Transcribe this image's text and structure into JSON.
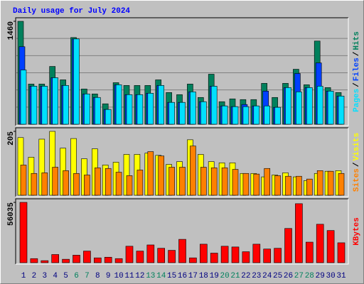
{
  "chart_data": [
    {
      "type": "bar",
      "title": "Daily usage for July 2024",
      "separator": "/",
      "ylim": [
        0,
        1460
      ],
      "yticks": [
        1460
      ],
      "series": [
        {
          "name": "Hits",
          "color": "#00805c",
          "values": [
            1460,
            570,
            570,
            820,
            630,
            1230,
            500,
            430,
            290,
            590,
            550,
            550,
            550,
            630,
            450,
            420,
            570,
            380,
            710,
            320,
            360,
            350,
            350,
            580,
            380,
            580,
            780,
            560,
            1180,
            520,
            450
          ]
        },
        {
          "name": "Files",
          "color": "#0040ff",
          "values": [
            1100,
            540,
            540,
            660,
            550,
            1210,
            430,
            380,
            210,
            560,
            420,
            420,
            440,
            550,
            310,
            310,
            460,
            320,
            540,
            260,
            250,
            280,
            260,
            470,
            240,
            520,
            720,
            520,
            870,
            470,
            400
          ]
        },
        {
          "name": "Pages",
          "color": "#00e0ff",
          "values": [
            770,
            540,
            540,
            660,
            550,
            1210,
            430,
            380,
            210,
            560,
            420,
            420,
            440,
            550,
            310,
            310,
            460,
            320,
            540,
            260,
            250,
            250,
            260,
            260,
            240,
            520,
            460,
            520,
            540,
            470,
            400
          ]
        }
      ]
    },
    {
      "type": "bar",
      "separator": "/",
      "ylim": [
        0,
        205
      ],
      "yticks": [
        205
      ],
      "series": [
        {
          "name": "Visits",
          "color": "#ffff00",
          "values": [
            185,
            122,
            180,
            205,
            151,
            182,
            117,
            149,
            97,
            106,
            131,
            131,
            135,
            128,
            99,
            108,
            178,
            131,
            108,
            104,
            104,
            70,
            70,
            59,
            65,
            72,
            59,
            47,
            70,
            77,
            79
          ]
        },
        {
          "name": "Sites",
          "color": "#ff8000",
          "values": [
            97,
            70,
            72,
            90,
            79,
            70,
            65,
            88,
            86,
            74,
            63,
            81,
            140,
            126,
            90,
            90,
            158,
            90,
            88,
            88,
            83,
            70,
            68,
            86,
            63,
            61,
            61,
            52,
            79,
            77,
            70
          ]
        }
      ]
    },
    {
      "type": "bar",
      "ylim": [
        0,
        56035
      ],
      "yticks": [
        56035
      ],
      "categories": [
        "1",
        "2",
        "3",
        "4",
        "5",
        "6",
        "7",
        "8",
        "9",
        "10",
        "11",
        "12",
        "13",
        "14",
        "15",
        "16",
        "17",
        "18",
        "19",
        "20",
        "21",
        "22",
        "23",
        "24",
        "25",
        "26",
        "27",
        "28",
        "29",
        "30",
        "31"
      ],
      "category_colors": [
        "#000080",
        "#000080",
        "#000080",
        "#000080",
        "#000080",
        "#00805c",
        "#00805c",
        "#000080",
        "#000080",
        "#000080",
        "#000080",
        "#000080",
        "#00805c",
        "#00805c",
        "#000080",
        "#000080",
        "#000080",
        "#000080",
        "#000080",
        "#00805c",
        "#00805c",
        "#000080",
        "#000080",
        "#000080",
        "#000080",
        "#000080",
        "#00805c",
        "#00805c",
        "#000080",
        "#000080",
        "#000080"
      ],
      "series": [
        {
          "name": "KBytes",
          "color": "#ff0000",
          "values": [
            56035,
            3800,
            1900,
            7600,
            3200,
            7000,
            10800,
            4500,
            5100,
            3800,
            15300,
            10800,
            16500,
            13400,
            11500,
            21700,
            4500,
            17200,
            8900,
            15300,
            14600,
            10200,
            17200,
            12700,
            13400,
            31800,
            54800,
            19100,
            35700,
            29900,
            18500
          ]
        }
      ]
    }
  ]
}
